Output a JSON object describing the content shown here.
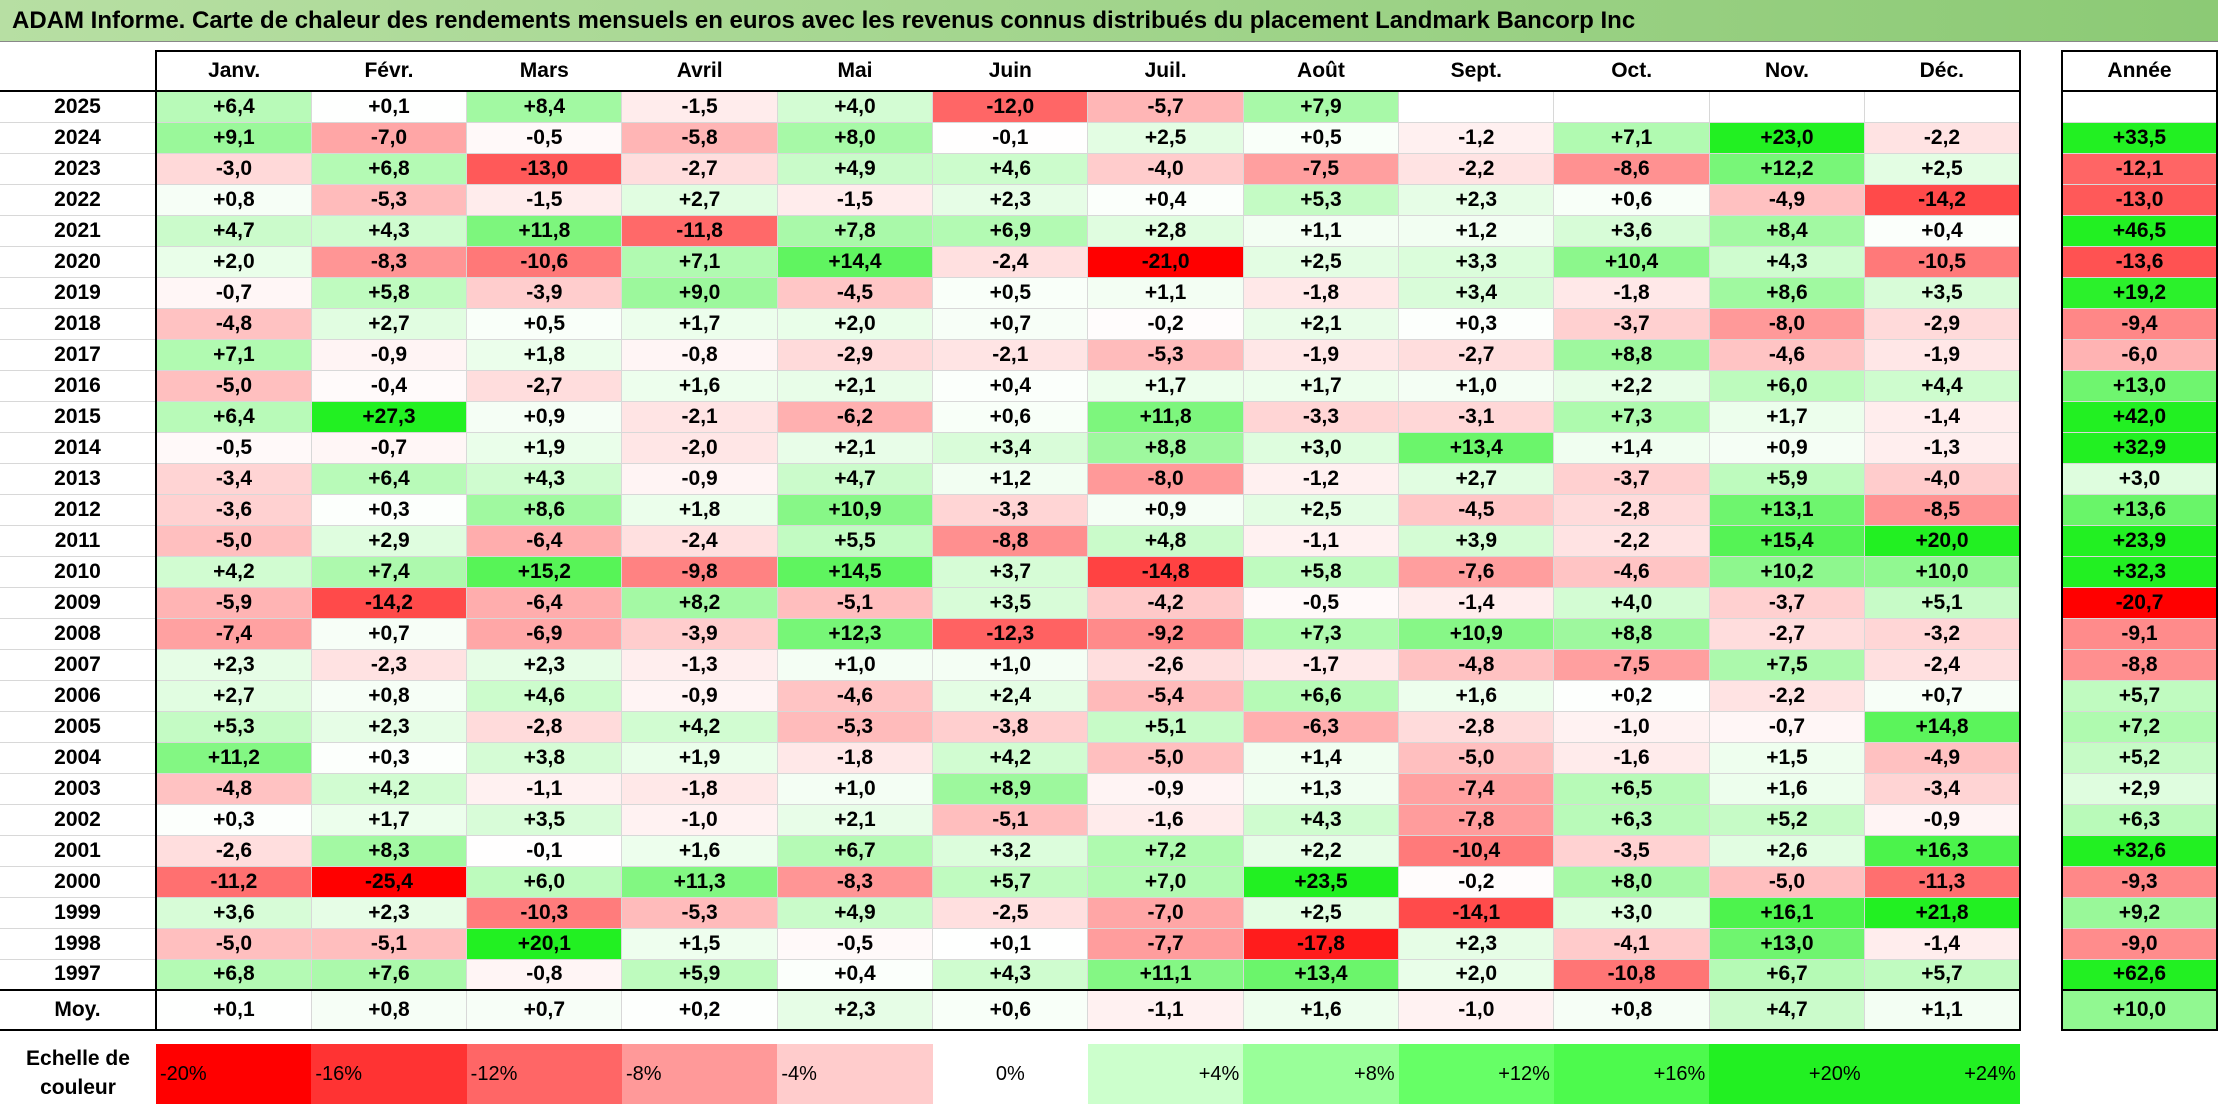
{
  "title": "ADAM Informe. Carte de chaleur des rendements mensuels en euros avec les revenus connus distribués du placement Landmark Bancorp Inc",
  "chart_data": {
    "type": "heatmap",
    "title": "ADAM Informe. Carte de chaleur des rendements mensuels en euros avec les revenus connus distribués du placement Landmark Bancorp Inc",
    "months": [
      "Janv.",
      "Févr.",
      "Mars",
      "Avril",
      "Mai",
      "Juin",
      "Juil.",
      "Août",
      "Sept.",
      "Oct.",
      "Nov.",
      "Déc."
    ],
    "annual_label": "Année",
    "rows": [
      {
        "year": "2025",
        "values": [
          6.4,
          0.1,
          8.4,
          -1.5,
          4.0,
          -12.0,
          -5.7,
          7.9,
          null,
          null,
          null,
          null
        ],
        "annual": null
      },
      {
        "year": "2024",
        "values": [
          9.1,
          -7.0,
          -0.5,
          -5.8,
          8.0,
          -0.1,
          2.5,
          0.5,
          -1.2,
          7.1,
          23.0,
          -2.2
        ],
        "annual": 33.5
      },
      {
        "year": "2023",
        "values": [
          -3.0,
          6.8,
          -13.0,
          -2.7,
          4.9,
          4.6,
          -4.0,
          -7.5,
          -2.2,
          -8.6,
          12.2,
          2.5
        ],
        "annual": -12.1
      },
      {
        "year": "2022",
        "values": [
          0.8,
          -5.3,
          -1.5,
          2.7,
          -1.5,
          2.3,
          0.4,
          5.3,
          2.3,
          0.6,
          -4.9,
          -14.2
        ],
        "annual": -13.0
      },
      {
        "year": "2021",
        "values": [
          4.7,
          4.3,
          11.8,
          -11.8,
          7.8,
          6.9,
          2.8,
          1.1,
          1.2,
          3.6,
          8.4,
          0.4
        ],
        "annual": 46.5
      },
      {
        "year": "2020",
        "values": [
          2.0,
          -8.3,
          -10.6,
          7.1,
          14.4,
          -2.4,
          -21.0,
          2.5,
          3.3,
          10.4,
          4.3,
          -10.5
        ],
        "annual": -13.6
      },
      {
        "year": "2019",
        "values": [
          -0.7,
          5.8,
          -3.9,
          9.0,
          -4.5,
          0.5,
          1.1,
          -1.8,
          3.4,
          -1.8,
          8.6,
          3.5
        ],
        "annual": 19.2
      },
      {
        "year": "2018",
        "values": [
          -4.8,
          2.7,
          0.5,
          1.7,
          2.0,
          0.7,
          -0.2,
          2.1,
          0.3,
          -3.7,
          -8.0,
          -2.9
        ],
        "annual": -9.4
      },
      {
        "year": "2017",
        "values": [
          7.1,
          -0.9,
          1.8,
          -0.8,
          -2.9,
          -2.1,
          -5.3,
          -1.9,
          -2.7,
          8.8,
          -4.6,
          -1.9
        ],
        "annual": -6.0
      },
      {
        "year": "2016",
        "values": [
          -5.0,
          -0.4,
          -2.7,
          1.6,
          2.1,
          0.4,
          1.7,
          1.7,
          1.0,
          2.2,
          6.0,
          4.4
        ],
        "annual": 13.0
      },
      {
        "year": "2015",
        "values": [
          6.4,
          27.3,
          0.9,
          -2.1,
          -6.2,
          0.6,
          11.8,
          -3.3,
          -3.1,
          7.3,
          1.7,
          -1.4
        ],
        "annual": 42.0
      },
      {
        "year": "2014",
        "values": [
          -0.5,
          -0.7,
          1.9,
          -2.0,
          2.1,
          3.4,
          8.8,
          3.0,
          13.4,
          1.4,
          0.9,
          -1.3
        ],
        "annual": 32.9
      },
      {
        "year": "2013",
        "values": [
          -3.4,
          6.4,
          4.3,
          -0.9,
          4.7,
          1.2,
          -8.0,
          -1.2,
          2.7,
          -3.7,
          5.9,
          -4.0
        ],
        "annual": 3.0
      },
      {
        "year": "2012",
        "values": [
          -3.6,
          0.3,
          8.6,
          1.8,
          10.9,
          -3.3,
          0.9,
          2.5,
          -4.5,
          -2.8,
          13.1,
          -8.5
        ],
        "annual": 13.6
      },
      {
        "year": "2011",
        "values": [
          -5.0,
          2.9,
          -6.4,
          -2.4,
          5.5,
          -8.8,
          4.8,
          -1.1,
          3.9,
          -2.2,
          15.4,
          20.0
        ],
        "annual": 23.9
      },
      {
        "year": "2010",
        "values": [
          4.2,
          7.4,
          15.2,
          -9.8,
          14.5,
          3.7,
          -14.8,
          5.8,
          -7.6,
          -4.6,
          10.2,
          10.0
        ],
        "annual": 32.3
      },
      {
        "year": "2009",
        "values": [
          -5.9,
          -14.2,
          -6.4,
          8.2,
          -5.1,
          3.5,
          -4.2,
          -0.5,
          -1.4,
          4.0,
          -3.7,
          5.1
        ],
        "annual": -20.7
      },
      {
        "year": "2008",
        "values": [
          -7.4,
          0.7,
          -6.9,
          -3.9,
          12.3,
          -12.3,
          -9.2,
          7.3,
          10.9,
          8.8,
          -2.7,
          -3.2
        ],
        "annual": -9.1
      },
      {
        "year": "2007",
        "values": [
          2.3,
          -2.3,
          2.3,
          -1.3,
          1.0,
          1.0,
          -2.6,
          -1.7,
          -4.8,
          -7.5,
          7.5,
          -2.4
        ],
        "annual": -8.8
      },
      {
        "year": "2006",
        "values": [
          2.7,
          0.8,
          4.6,
          -0.9,
          -4.6,
          2.4,
          -5.4,
          6.6,
          1.6,
          0.2,
          -2.2,
          0.7
        ],
        "annual": 5.7
      },
      {
        "year": "2005",
        "values": [
          5.3,
          2.3,
          -2.8,
          4.2,
          -5.3,
          -3.8,
          5.1,
          -6.3,
          -2.8,
          -1.0,
          -0.7,
          14.8
        ],
        "annual": 7.2
      },
      {
        "year": "2004",
        "values": [
          11.2,
          0.3,
          3.8,
          1.9,
          -1.8,
          4.2,
          -5.0,
          1.4,
          -5.0,
          -1.6,
          1.5,
          -4.9
        ],
        "annual": 5.2
      },
      {
        "year": "2003",
        "values": [
          -4.8,
          4.2,
          -1.1,
          -1.8,
          1.0,
          8.9,
          -0.9,
          1.3,
          -7.4,
          6.5,
          1.6,
          -3.4
        ],
        "annual": 2.9
      },
      {
        "year": "2002",
        "values": [
          0.3,
          1.7,
          3.5,
          -1.0,
          2.1,
          -5.1,
          -1.6,
          4.3,
          -7.8,
          6.3,
          5.2,
          -0.9
        ],
        "annual": 6.3
      },
      {
        "year": "2001",
        "values": [
          -2.6,
          8.3,
          -0.1,
          1.6,
          6.7,
          3.2,
          7.2,
          2.2,
          -10.4,
          -3.5,
          2.6,
          16.3
        ],
        "annual": 32.6
      },
      {
        "year": "2000",
        "values": [
          -11.2,
          -25.4,
          6.0,
          11.3,
          -8.3,
          5.7,
          7.0,
          23.5,
          -0.2,
          8.0,
          -5.0,
          -11.3
        ],
        "annual": -9.3
      },
      {
        "year": "1999",
        "values": [
          3.6,
          2.3,
          -10.3,
          -5.3,
          4.9,
          -2.5,
          -7.0,
          2.5,
          -14.1,
          3.0,
          16.1,
          21.8
        ],
        "annual": 9.2
      },
      {
        "year": "1998",
        "values": [
          -5.0,
          -5.1,
          20.1,
          1.5,
          -0.5,
          0.1,
          -7.7,
          -17.8,
          2.3,
          -4.1,
          13.0,
          -1.4
        ],
        "annual": -9.0
      },
      {
        "year": "1997",
        "values": [
          6.8,
          7.6,
          -0.8,
          5.9,
          0.4,
          4.3,
          11.1,
          13.4,
          2.0,
          -10.8,
          6.7,
          5.7
        ],
        "annual": 62.6
      }
    ],
    "average": {
      "label": "Moy.",
      "values": [
        0.1,
        0.8,
        0.7,
        0.2,
        2.3,
        0.6,
        -1.1,
        1.6,
        -1.0,
        0.8,
        4.7,
        1.1
      ],
      "annual": 10.0
    },
    "color_scale": {
      "label": "Echelle de couleur",
      "steps": [
        {
          "label": "-20%",
          "value": -20,
          "color": "#ff0000"
        },
        {
          "label": "-16%",
          "value": -16,
          "color": "#ff3333"
        },
        {
          "label": "-12%",
          "value": -12,
          "color": "#ff6666"
        },
        {
          "label": "-8%",
          "value": -8,
          "color": "#ff9999"
        },
        {
          "label": "-4%",
          "value": -4,
          "color": "#ffcccc"
        },
        {
          "label": "0%",
          "value": 0,
          "color": "#ffffff"
        },
        {
          "label": "+4%",
          "value": 4,
          "color": "#ccffcc"
        },
        {
          "label": "+8%",
          "value": 8,
          "color": "#99ff99"
        },
        {
          "label": "+12%",
          "value": 12,
          "color": "#66ff66"
        },
        {
          "label": "+16%",
          "value": 16,
          "color": "#4dfa4d"
        },
        {
          "label": "+20%",
          "value": 20,
          "color": "#22f022"
        },
        {
          "label": "+24%",
          "value": 24,
          "color": "#22f022"
        }
      ]
    }
  }
}
